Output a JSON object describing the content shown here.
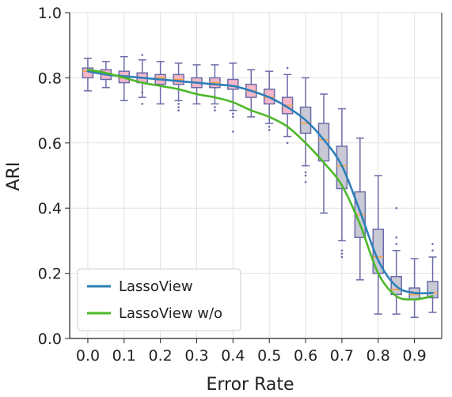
{
  "chart_data": {
    "type": "box",
    "xlabel": "Error Rate",
    "ylabel": "ARI",
    "xlim": [
      -0.05,
      0.975
    ],
    "ylim": [
      0,
      1.0
    ],
    "xticks": [
      "0.0",
      "0.1",
      "0.2",
      "0.3",
      "0.4",
      "0.5",
      "0.6",
      "0.7",
      "0.8",
      "0.9"
    ],
    "yticks": [
      "0.0",
      "0.2",
      "0.4",
      "0.6",
      "0.8",
      "1.0"
    ],
    "grid": true,
    "legend_position": "lower-left",
    "colors": {
      "lassoview_line": "#2e7fb8",
      "lassoview_wo_line": "#4db82a",
      "box_fill_low": "#f3b7c9",
      "box_fill_high": "#c9c9d6",
      "box_edge": "#6b6ba8",
      "median": "#f5a142",
      "grid": "#e2e2e2"
    },
    "series": [
      {
        "name": "LassoView",
        "x": [
          0.0,
          0.05,
          0.1,
          0.15,
          0.2,
          0.25,
          0.3,
          0.35,
          0.4,
          0.45,
          0.5,
          0.55,
          0.6,
          0.65,
          0.7,
          0.75,
          0.8,
          0.85,
          0.9,
          0.95
        ],
        "y": [
          0.82,
          0.81,
          0.805,
          0.8,
          0.795,
          0.79,
          0.785,
          0.78,
          0.775,
          0.76,
          0.74,
          0.71,
          0.67,
          0.61,
          0.53,
          0.39,
          0.24,
          0.16,
          0.14,
          0.14
        ]
      },
      {
        "name": "LassoView w/o",
        "x": [
          0.0,
          0.05,
          0.1,
          0.15,
          0.2,
          0.25,
          0.3,
          0.35,
          0.4,
          0.45,
          0.5,
          0.55,
          0.6,
          0.65,
          0.7,
          0.75,
          0.8,
          0.85,
          0.9,
          0.95
        ],
        "y": [
          0.825,
          0.815,
          0.8,
          0.785,
          0.775,
          0.765,
          0.75,
          0.74,
          0.725,
          0.7,
          0.68,
          0.65,
          0.6,
          0.54,
          0.47,
          0.35,
          0.2,
          0.13,
          0.12,
          0.13
        ]
      }
    ],
    "boxes": [
      {
        "x": 0.0,
        "whislo": 0.76,
        "q1": 0.8,
        "med": 0.82,
        "q3": 0.83,
        "whishi": 0.86,
        "fliers": []
      },
      {
        "x": 0.05,
        "whislo": 0.77,
        "q1": 0.795,
        "med": 0.81,
        "q3": 0.825,
        "whishi": 0.85,
        "fliers": []
      },
      {
        "x": 0.1,
        "whislo": 0.73,
        "q1": 0.785,
        "med": 0.8,
        "q3": 0.82,
        "whishi": 0.865,
        "fliers": []
      },
      {
        "x": 0.15,
        "whislo": 0.74,
        "q1": 0.785,
        "med": 0.8,
        "q3": 0.815,
        "whishi": 0.855,
        "fliers": [
          0.72,
          0.755,
          0.87
        ]
      },
      {
        "x": 0.2,
        "whislo": 0.72,
        "q1": 0.78,
        "med": 0.8,
        "q3": 0.81,
        "whishi": 0.85,
        "fliers": []
      },
      {
        "x": 0.25,
        "whislo": 0.73,
        "q1": 0.78,
        "med": 0.795,
        "q3": 0.81,
        "whishi": 0.845,
        "fliers": [
          0.7,
          0.71,
          0.72,
          0.73
        ]
      },
      {
        "x": 0.3,
        "whislo": 0.72,
        "q1": 0.77,
        "med": 0.785,
        "q3": 0.8,
        "whishi": 0.84,
        "fliers": []
      },
      {
        "x": 0.35,
        "whislo": 0.72,
        "q1": 0.77,
        "med": 0.785,
        "q3": 0.8,
        "whishi": 0.84,
        "fliers": [
          0.7,
          0.71
        ]
      },
      {
        "x": 0.4,
        "whislo": 0.7,
        "q1": 0.765,
        "med": 0.775,
        "q3": 0.795,
        "whishi": 0.845,
        "fliers": [
          0.635,
          0.68,
          0.69
        ]
      },
      {
        "x": 0.45,
        "whislo": 0.68,
        "q1": 0.74,
        "med": 0.76,
        "q3": 0.78,
        "whishi": 0.825,
        "fliers": []
      },
      {
        "x": 0.5,
        "whislo": 0.66,
        "q1": 0.72,
        "med": 0.74,
        "q3": 0.765,
        "whishi": 0.82,
        "fliers": [
          0.64,
          0.65
        ]
      },
      {
        "x": 0.55,
        "whislo": 0.62,
        "q1": 0.69,
        "med": 0.715,
        "q3": 0.74,
        "whishi": 0.81,
        "fliers": [
          0.6,
          0.83
        ]
      },
      {
        "x": 0.6,
        "whislo": 0.53,
        "q1": 0.63,
        "med": 0.66,
        "q3": 0.71,
        "whishi": 0.8,
        "fliers": [
          0.48,
          0.5,
          0.51
        ]
      },
      {
        "x": 0.65,
        "whislo": 0.385,
        "q1": 0.545,
        "med": 0.61,
        "q3": 0.66,
        "whishi": 0.75,
        "fliers": []
      },
      {
        "x": 0.7,
        "whislo": 0.3,
        "q1": 0.46,
        "med": 0.53,
        "q3": 0.59,
        "whishi": 0.705,
        "fliers": [
          0.25,
          0.26,
          0.27
        ]
      },
      {
        "x": 0.75,
        "whislo": 0.18,
        "q1": 0.31,
        "med": 0.38,
        "q3": 0.45,
        "whishi": 0.615,
        "fliers": []
      },
      {
        "x": 0.8,
        "whislo": 0.075,
        "q1": 0.2,
        "med": 0.25,
        "q3": 0.335,
        "whishi": 0.5,
        "fliers": []
      },
      {
        "x": 0.85,
        "whislo": 0.075,
        "q1": 0.135,
        "med": 0.15,
        "q3": 0.19,
        "whishi": 0.27,
        "fliers": [
          0.29,
          0.31,
          0.4
        ]
      },
      {
        "x": 0.9,
        "whislo": 0.065,
        "q1": 0.12,
        "med": 0.135,
        "q3": 0.155,
        "whishi": 0.245,
        "fliers": []
      },
      {
        "x": 0.95,
        "whislo": 0.08,
        "q1": 0.125,
        "med": 0.14,
        "q3": 0.175,
        "whishi": 0.25,
        "fliers": [
          0.27,
          0.29
        ]
      }
    ]
  }
}
